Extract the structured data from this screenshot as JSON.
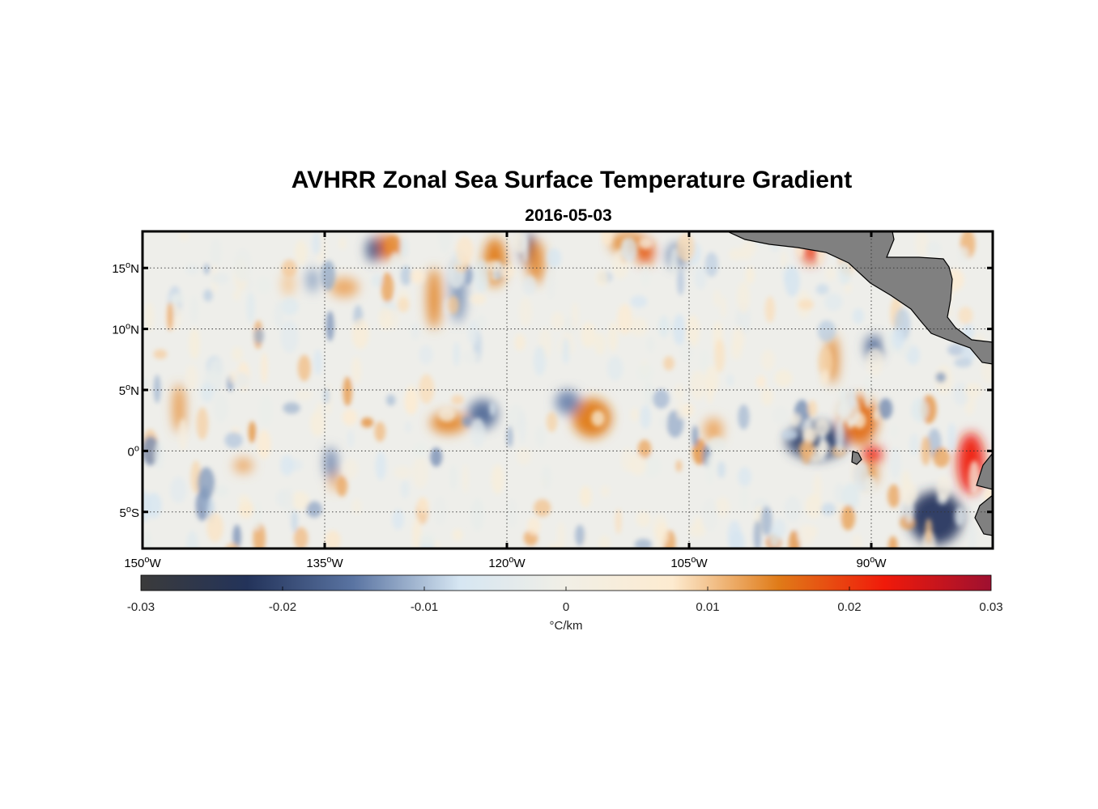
{
  "title": "AVHRR Zonal Sea Surface Temperature Gradient",
  "subtitle": "2016-05-03",
  "colors": {
    "land": "#808080",
    "land_edge": "#000000",
    "neutral": "#eeeeea",
    "cmap": [
      "#3b3b3b",
      "#23335a",
      "#5a74a2",
      "#d6e6f2",
      "#f1efe6",
      "#fdebd0",
      "#e07b18",
      "#f01a0a",
      "#9e1030"
    ]
  },
  "chart_data": {
    "type": "heatmap",
    "title": "AVHRR Zonal Sea Surface Temperature Gradient",
    "subtitle": "2016-05-03",
    "xlabel": "",
    "ylabel": "",
    "xlim": [
      -150,
      -80
    ],
    "ylim": [
      -8,
      18
    ],
    "x_ticks": [
      {
        "value": -150,
        "deg": "150",
        "hemi": "W"
      },
      {
        "value": -135,
        "deg": "135",
        "hemi": "W"
      },
      {
        "value": -120,
        "deg": "120",
        "hemi": "W"
      },
      {
        "value": -105,
        "deg": "105",
        "hemi": "W"
      },
      {
        "value": -90,
        "deg": "90",
        "hemi": "W"
      }
    ],
    "y_ticks": [
      {
        "value": 15,
        "deg": "15",
        "hemi": "N"
      },
      {
        "value": 10,
        "deg": "10",
        "hemi": "N"
      },
      {
        "value": 5,
        "deg": "5",
        "hemi": "N"
      },
      {
        "value": 0,
        "deg": "0",
        "hemi": ""
      },
      {
        "value": -5,
        "deg": "5",
        "hemi": "S"
      }
    ],
    "grid": true,
    "colorbar": {
      "min": -0.03,
      "max": 0.03,
      "ticks": [
        {
          "value": -0.03,
          "label": "-0.03"
        },
        {
          "value": -0.02,
          "label": "-0.02"
        },
        {
          "value": -0.01,
          "label": "-0.01"
        },
        {
          "value": 0,
          "label": "0"
        },
        {
          "value": 0.01,
          "label": "0.01"
        },
        {
          "value": 0.02,
          "label": "0.02"
        },
        {
          "value": 0.03,
          "label": "0.03"
        }
      ],
      "label": "°C/km"
    },
    "features": [
      {
        "lon": -147.0,
        "lat": 3.5,
        "value": 0.013,
        "rlon": 0.5,
        "rlat": 2.0
      },
      {
        "lon": -141.7,
        "lat": -1.2,
        "value": 0.012,
        "rlon": 0.8,
        "rlat": 0.6
      },
      {
        "lon": -138.0,
        "lat": 13.7,
        "value": 0.01,
        "rlon": 0.5,
        "rlat": 1.0
      },
      {
        "lon": -136.0,
        "lat": 14.0,
        "value": -0.012,
        "rlon": 0.5,
        "rlat": 1.0
      },
      {
        "lon": -133.4,
        "lat": 13.4,
        "value": 0.012,
        "rlon": 1.2,
        "rlat": 0.8
      },
      {
        "lon": -134.2,
        "lat": -2.3,
        "value": 0.012,
        "rlon": 0.4,
        "rlat": 1.0
      },
      {
        "lon": -134.5,
        "lat": -1.0,
        "value": -0.014,
        "rlon": 0.5,
        "rlat": 1.3
      },
      {
        "lon": -130.0,
        "lat": 16.7,
        "value": 0.016,
        "rlon": 1.0,
        "rlat": 1.0
      },
      {
        "lon": -131.0,
        "lat": 16.5,
        "value": -0.018,
        "rlon": 0.6,
        "rlat": 1.0
      },
      {
        "lon": -126.0,
        "lat": 12.5,
        "value": 0.014,
        "rlon": 0.6,
        "rlat": 2.5
      },
      {
        "lon": -124.0,
        "lat": 13.0,
        "value": -0.013,
        "rlon": 0.6,
        "rlat": 2.5
      },
      {
        "lon": -124.8,
        "lat": 2.3,
        "value": 0.014,
        "rlon": 1.5,
        "rlat": 0.9
      },
      {
        "lon": -122.0,
        "lat": 3.0,
        "value": -0.016,
        "rlon": 1.2,
        "rlat": 1.2
      },
      {
        "lon": -121.0,
        "lat": 15.5,
        "value": 0.015,
        "rlon": 0.9,
        "rlat": 2.0
      },
      {
        "lon": -118.2,
        "lat": 16.5,
        "value": -0.02,
        "rlon": 0.6,
        "rlat": 1.3
      },
      {
        "lon": -117.6,
        "lat": 15.5,
        "value": 0.014,
        "rlon": 0.7,
        "rlat": 1.8
      },
      {
        "lon": -113.0,
        "lat": 2.7,
        "value": 0.015,
        "rlon": 1.6,
        "rlat": 1.6
      },
      {
        "lon": -115.0,
        "lat": 4.0,
        "value": -0.014,
        "rlon": 1.0,
        "rlat": 1.0
      },
      {
        "lon": -110.0,
        "lat": 17.0,
        "value": 0.014,
        "rlon": 1.5,
        "rlat": 0.9
      },
      {
        "lon": -108.6,
        "lat": 16.3,
        "value": 0.018,
        "rlon": 0.7,
        "rlat": 1.0
      },
      {
        "lon": -106.0,
        "lat": 16.0,
        "value": -0.014,
        "rlon": 0.8,
        "rlat": 1.0
      },
      {
        "lon": -103.0,
        "lat": 1.7,
        "value": 0.012,
        "rlon": 0.8,
        "rlat": 1.0
      },
      {
        "lon": -94.5,
        "lat": 0.8,
        "value": -0.02,
        "rlon": 2.5,
        "rlat": 1.5
      },
      {
        "lon": -91.0,
        "lat": 2.5,
        "value": 0.016,
        "rlon": 1.5,
        "rlat": 2.0
      },
      {
        "lon": -89.9,
        "lat": -0.3,
        "value": 0.022,
        "rlon": 0.8,
        "rlat": 0.7
      },
      {
        "lon": -90.2,
        "lat": -1.9,
        "value": 0.014,
        "rlon": 0.7,
        "rlat": 0.9
      },
      {
        "lon": -84.7,
        "lat": -5.5,
        "value": -0.022,
        "rlon": 2.2,
        "rlat": 2.2
      },
      {
        "lon": -81.8,
        "lat": -1.0,
        "value": 0.022,
        "rlon": 1.1,
        "rlat": 2.5
      },
      {
        "lon": -95.0,
        "lat": 16.3,
        "value": 0.02,
        "rlon": 0.6,
        "rlat": 1.0
      },
      {
        "lon": -93.2,
        "lat": 7.5,
        "value": 0.014,
        "rlon": 0.5,
        "rlat": 2.0
      },
      {
        "lon": -89.8,
        "lat": 8.5,
        "value": -0.016,
        "rlon": 0.7,
        "rlat": 1.0
      }
    ]
  }
}
